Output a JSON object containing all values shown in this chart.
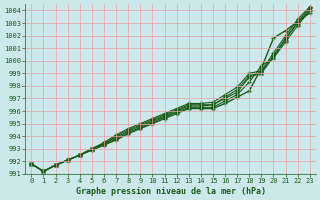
{
  "title": "Graphe pression niveau de la mer (hPa)",
  "bg_color": "#cde8ea",
  "grid_color": "#e8a0a0",
  "line_color": "#1a5c1a",
  "xlim": [
    -0.5,
    23.5
  ],
  "ylim": [
    991,
    1004.5
  ],
  "xticks": [
    0,
    1,
    2,
    3,
    4,
    5,
    6,
    7,
    8,
    9,
    10,
    11,
    12,
    13,
    14,
    15,
    16,
    17,
    18,
    19,
    20,
    21,
    22,
    23
  ],
  "yticks": [
    991,
    992,
    993,
    994,
    995,
    996,
    997,
    998,
    999,
    1000,
    1001,
    1002,
    1003,
    1004
  ],
  "series": [
    [
      991.8,
      991.2,
      991.7,
      992.1,
      992.5,
      992.9,
      993.3,
      993.7,
      994.2,
      994.6,
      995.0,
      995.4,
      995.8,
      996.2,
      996.2,
      996.2,
      996.6,
      997.1,
      997.6,
      999.4,
      1001.8,
      1002.4,
      1003.1,
      1003.8
    ],
    [
      991.8,
      991.2,
      991.7,
      992.1,
      992.5,
      992.9,
      993.3,
      993.8,
      994.3,
      994.7,
      995.1,
      995.5,
      995.9,
      996.3,
      996.3,
      996.3,
      996.8,
      997.3,
      998.3,
      999.6,
      1000.2,
      1001.5,
      1002.8,
      1004.0
    ],
    [
      991.8,
      991.2,
      991.7,
      992.1,
      992.5,
      993.0,
      993.4,
      993.9,
      994.4,
      994.8,
      995.2,
      995.6,
      996.0,
      996.4,
      996.4,
      996.5,
      997.0,
      997.5,
      998.7,
      999.0,
      1000.3,
      1001.7,
      1003.0,
      1004.1
    ],
    [
      991.8,
      991.2,
      991.7,
      992.1,
      992.5,
      993.0,
      993.4,
      994.0,
      994.5,
      994.9,
      995.3,
      995.7,
      996.1,
      996.5,
      996.5,
      996.5,
      997.1,
      997.7,
      998.8,
      999.1,
      1000.4,
      1001.8,
      1003.1,
      1004.2
    ],
    [
      991.8,
      991.2,
      991.7,
      992.1,
      992.5,
      993.0,
      993.5,
      994.1,
      994.6,
      995.0,
      995.4,
      995.8,
      996.2,
      996.6,
      996.6,
      996.7,
      997.3,
      997.9,
      999.0,
      999.2,
      1000.6,
      1002.0,
      1003.3,
      1004.3
    ]
  ]
}
